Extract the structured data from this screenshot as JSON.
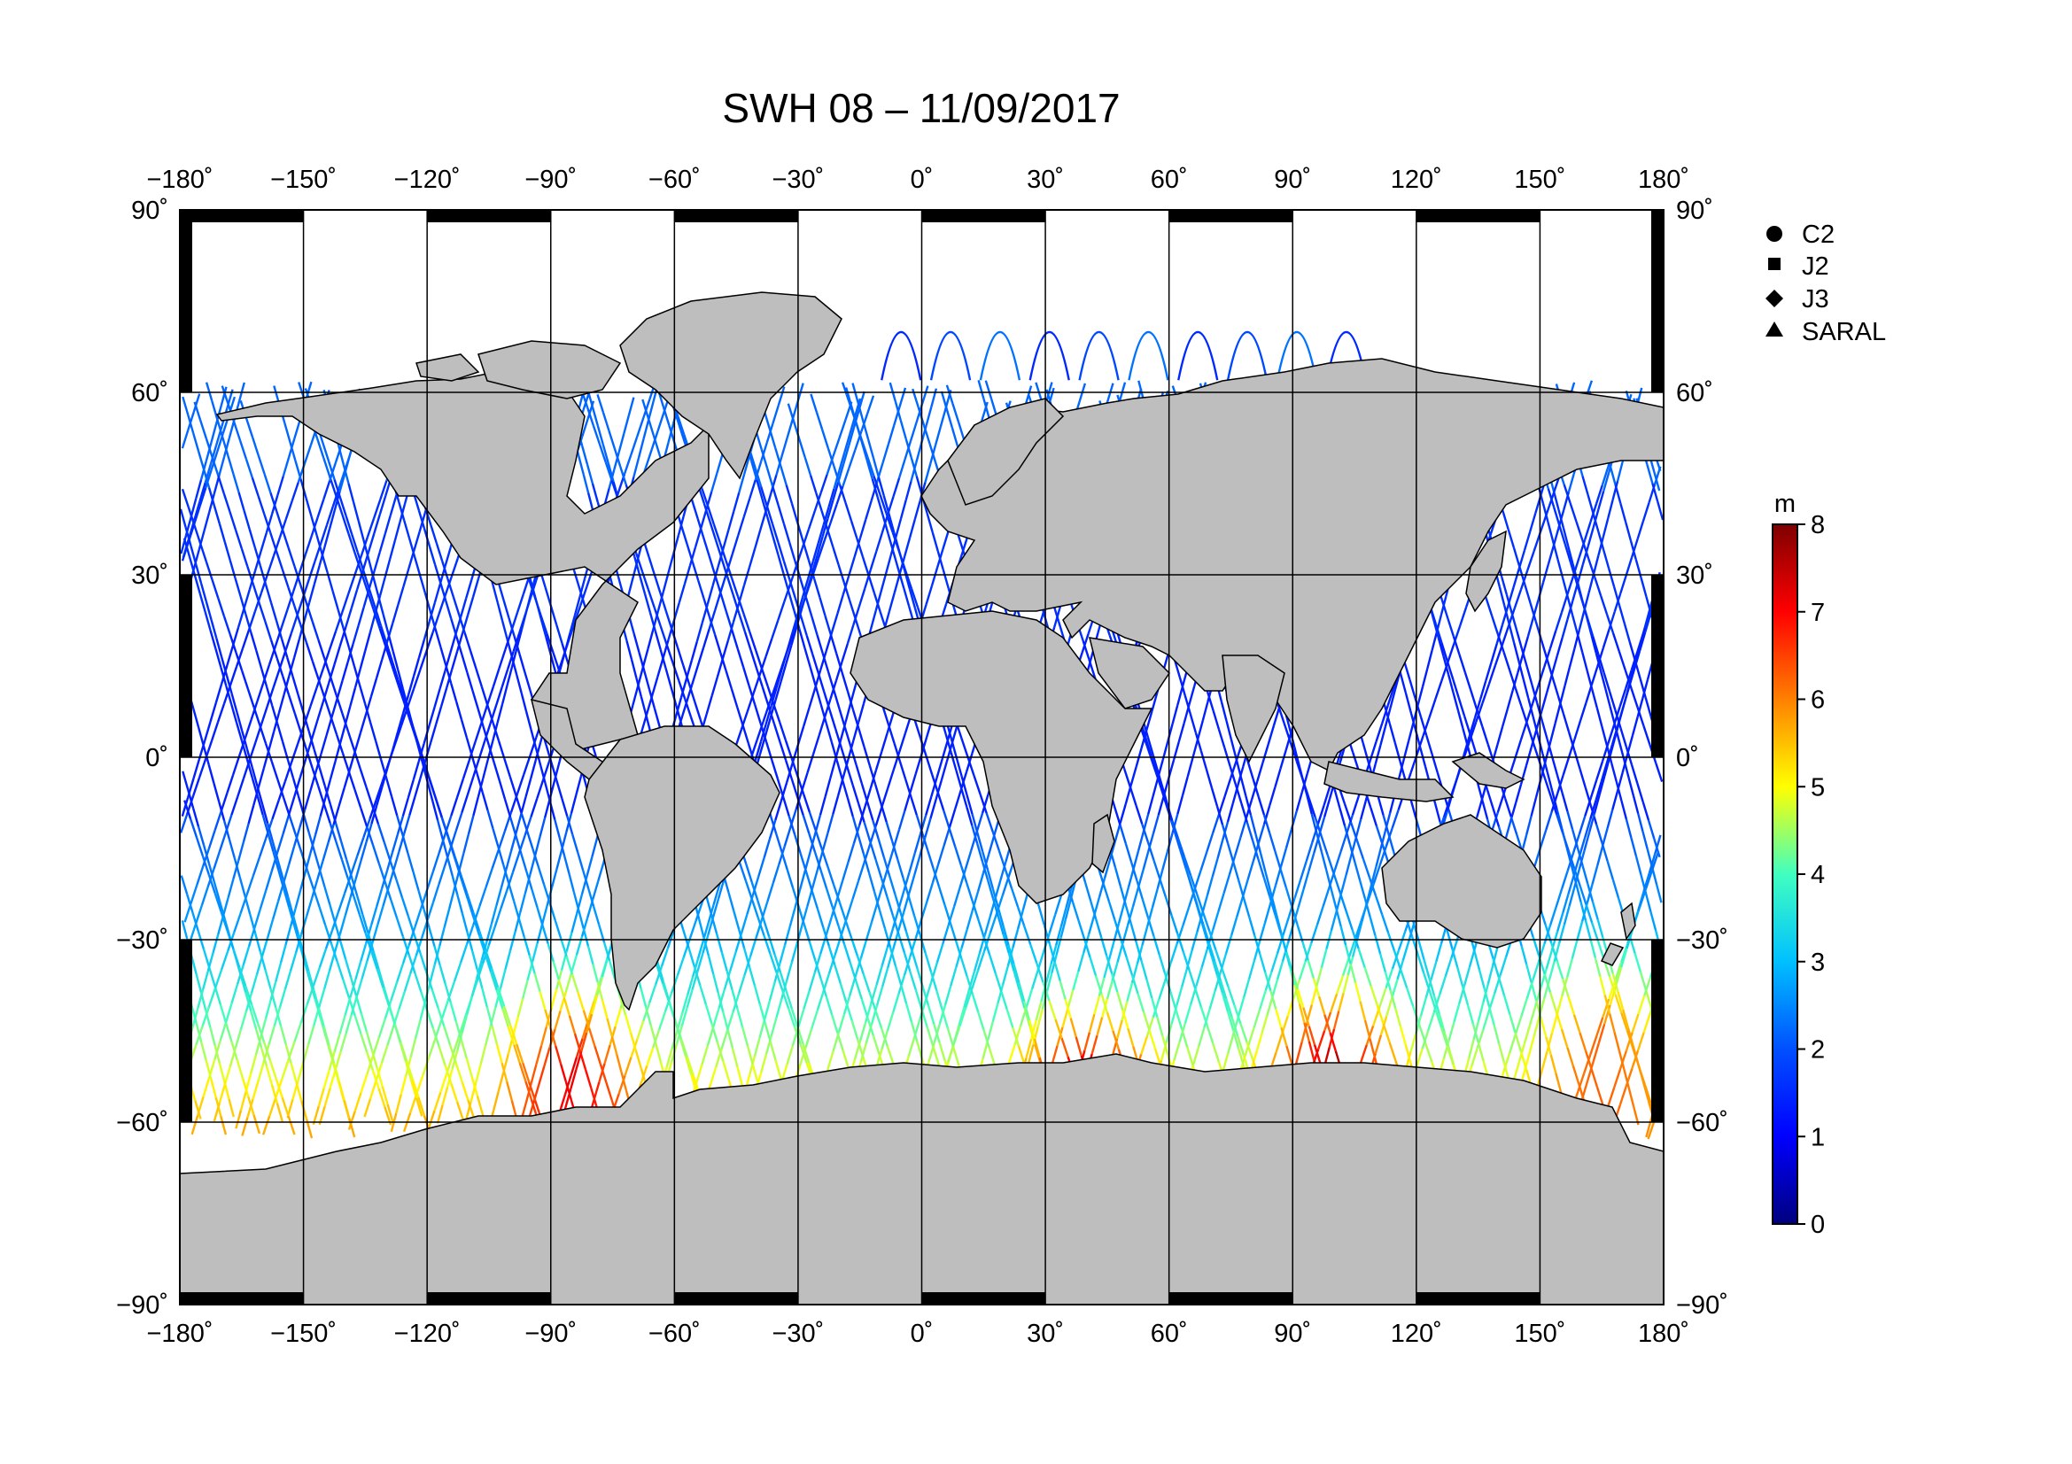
{
  "title": "SWH 08 – 11/09/2017",
  "axes": {
    "lon_ticks": [
      -180,
      -150,
      -120,
      -90,
      -60,
      -30,
      0,
      30,
      60,
      90,
      120,
      150,
      180
    ],
    "lat_ticks": [
      90,
      60,
      30,
      0,
      -30,
      -60,
      -90
    ],
    "lon_labels": [
      "−180˚",
      "−150˚",
      "−120˚",
      "−90˚",
      "−60˚",
      "−30˚",
      "0˚",
      "30˚",
      "60˚",
      "90˚",
      "120˚",
      "150˚",
      "180˚"
    ],
    "lat_labels": [
      "90˚",
      "60˚",
      "30˚",
      "0˚",
      "−30˚",
      "−60˚",
      "−90˚"
    ],
    "xlim": [
      -180,
      180
    ],
    "ylim": [
      -90,
      90
    ]
  },
  "legend": {
    "items": [
      {
        "label": "C2",
        "marker": "circle"
      },
      {
        "label": "J2",
        "marker": "square"
      },
      {
        "label": "J3",
        "marker": "diamond"
      },
      {
        "label": "SARAL",
        "marker": "triangle"
      }
    ]
  },
  "colorbar": {
    "unit": "m",
    "min": 0,
    "max": 8,
    "ticks": [
      "0",
      "1",
      "2",
      "3",
      "4",
      "5",
      "6",
      "7",
      "8"
    ],
    "colors": [
      "#00007f",
      "#0000ff",
      "#007fff",
      "#00ffff",
      "#7fff7f",
      "#ffff00",
      "#ff7f00",
      "#ff0000",
      "#7f0000"
    ]
  },
  "colors": {
    "land": "#bebebe",
    "ocean": "#ffffff",
    "grid": "#000000",
    "frame": "#000000"
  },
  "chart_data": {
    "type": "map",
    "variable": "SWH",
    "projection": "equirectangular",
    "tracks": [
      {
        "lon_range": [
          -180,
          -60
        ],
        "lat_range": [
          -64,
          60
        ],
        "swh_m": [
          1.5,
          2.5,
          3.0,
          4.0,
          6.0
        ]
      },
      {
        "lon_range": [
          -60,
          20
        ],
        "lat_range": [
          -60,
          66
        ],
        "swh_m": [
          1.5,
          2.0,
          2.5,
          3.0,
          4.0
        ]
      },
      {
        "lon_range": [
          20,
          150
        ],
        "lat_range": [
          -62,
          30
        ],
        "swh_m": [
          2.0,
          3.0,
          4.0,
          5.0,
          7.0
        ]
      },
      {
        "lon_range": [
          110,
          180
        ],
        "lat_range": [
          -62,
          62
        ],
        "swh_m": [
          1.0,
          2.0,
          3.0,
          4.0,
          6.0
        ]
      }
    ],
    "high_swh_regions": [
      {
        "lon": -85,
        "lat": -50,
        "swh_m": 7
      },
      {
        "lon": 40,
        "lat": -55,
        "swh_m": 7.5
      },
      {
        "lon": 100,
        "lat": -50,
        "swh_m": 7.5
      },
      {
        "lon": 165,
        "lat": -45,
        "swh_m": 6.5
      }
    ]
  }
}
